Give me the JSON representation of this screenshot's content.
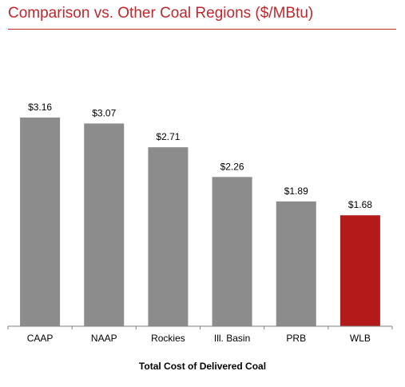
{
  "header": {
    "title": "Comparison vs. Other Coal Regions ($/MBtu)"
  },
  "colors": {
    "accent": "#c0272d",
    "bar": "#8c8c8c",
    "highlight_bar": "#b31b1b",
    "axis": "#7f7f7f"
  },
  "chart_data": {
    "type": "bar",
    "title": "Comparison vs. Other Coal Regions ($/MBtu)",
    "xlabel": "Total Cost of Delivered Coal",
    "ylabel": "",
    "categories": [
      "CAAP",
      "NAAP",
      "Rockies",
      "Ill. Basin",
      "PRB",
      "WLB"
    ],
    "values": [
      3.16,
      3.07,
      2.71,
      2.26,
      1.89,
      1.68
    ],
    "data_labels": [
      "$3.16",
      "$3.07",
      "$2.71",
      "$2.26",
      "$1.89",
      "$1.68"
    ],
    "highlight": "WLB",
    "ylim": [
      0,
      3.16
    ],
    "grid": false,
    "legend": "none"
  }
}
